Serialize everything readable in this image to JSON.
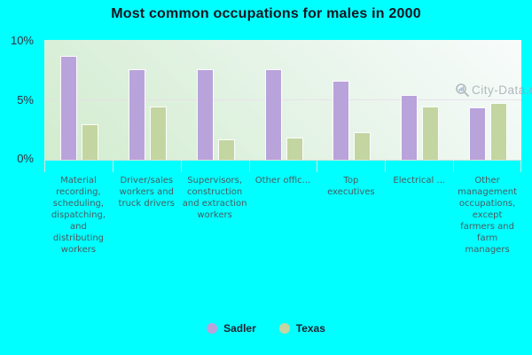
{
  "page": {
    "background_color": "#00FFFF"
  },
  "title": "Most common occupations for males in 2000",
  "watermark": {
    "text": "City-Data.com"
  },
  "chart_data": {
    "type": "bar",
    "title": "Most common occupations for males in 2000",
    "categories": [
      "Material recording, scheduling, dispatching, and distributing workers",
      "Driver/sales workers and truck drivers",
      "Supervisors, construction and extraction workers",
      "Other offic...",
      "Top executives",
      "Electrical ...",
      "Other management occupations, except farmers and farm managers"
    ],
    "series": [
      {
        "name": "Sadler",
        "color": "#b9a3db",
        "values": [
          8.6,
          7.5,
          7.5,
          7.5,
          6.5,
          5.3,
          4.3
        ]
      },
      {
        "name": "Texas",
        "color": "#c3d5a1",
        "values": [
          2.9,
          4.4,
          1.6,
          1.8,
          2.2,
          4.4,
          4.7
        ]
      }
    ],
    "y_axis": {
      "ticks": [
        "10%",
        "5%",
        "0%"
      ],
      "range": [
        0,
        10
      ],
      "unit": "percent"
    },
    "grid": {
      "horizontal_line_at": 5
    },
    "legend_position": "bottom",
    "plot_background": [
      "#f8fcfc",
      "#d2ecce"
    ]
  }
}
